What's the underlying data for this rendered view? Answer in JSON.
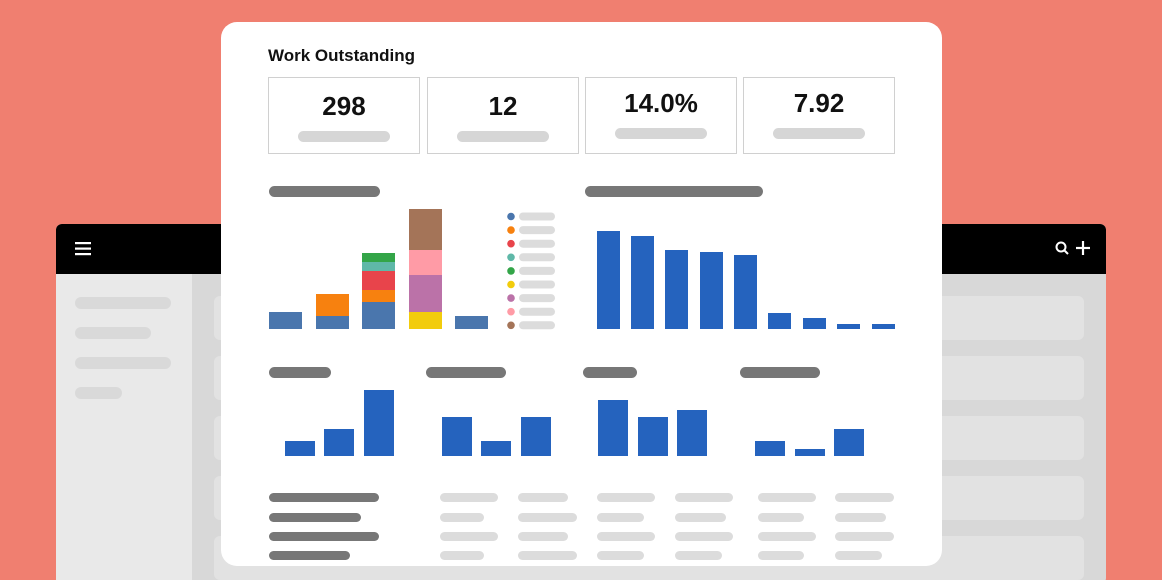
{
  "header": {
    "title": "Work Outstanding"
  },
  "metrics": [
    "298",
    "12",
    "14.0%",
    "7.92"
  ]
}
